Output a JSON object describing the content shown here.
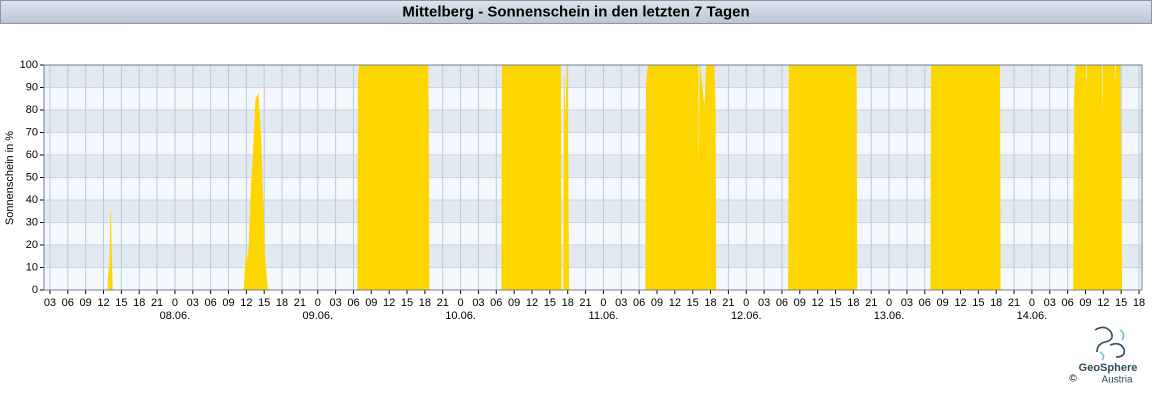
{
  "chart_data": {
    "type": "area",
    "title": "Mittelberg - Sonnenschein in den letzten 7 Tagen",
    "y_label": "Sonnenschein in %",
    "color": "#fdd600",
    "grid": true,
    "xlim": [
      -22,
      162.5
    ],
    "ylim": [
      0,
      100
    ],
    "yticks": [
      0,
      10,
      20,
      30,
      40,
      50,
      60,
      70,
      80,
      90,
      100
    ],
    "xticks": [
      {
        "value": -21,
        "label": "03"
      },
      {
        "value": -18,
        "label": "06"
      },
      {
        "value": -15,
        "label": "09"
      },
      {
        "value": -12,
        "label": "12"
      },
      {
        "value": -9,
        "label": "15"
      },
      {
        "value": -6,
        "label": "18"
      },
      {
        "value": -3,
        "label": "21"
      },
      0,
      {
        "value": 3,
        "label": "03"
      },
      {
        "value": 6,
        "label": "06"
      },
      {
        "value": 9,
        "label": "09"
      },
      12,
      15,
      18,
      21,
      {
        "value": 24,
        "label": "0"
      },
      {
        "value": 27,
        "label": "03"
      },
      {
        "value": 30,
        "label": "06"
      },
      {
        "value": 33,
        "label": "09"
      },
      {
        "value": 36,
        "label": "12"
      },
      {
        "value": 39,
        "label": "15"
      },
      {
        "value": 42,
        "label": "18"
      },
      {
        "value": 45,
        "label": "21"
      },
      {
        "value": 48,
        "label": "0"
      },
      {
        "value": 51,
        "label": "03"
      },
      {
        "value": 54,
        "label": "06"
      },
      {
        "value": 57,
        "label": "09"
      },
      {
        "value": 60,
        "label": "12"
      },
      {
        "value": 63,
        "label": "15"
      },
      {
        "value": 66,
        "label": "18"
      },
      {
        "value": 69,
        "label": "21"
      },
      {
        "value": 72,
        "label": "0"
      },
      {
        "value": 75,
        "label": "03"
      },
      {
        "value": 78,
        "label": "06"
      },
      {
        "value": 81,
        "label": "09"
      },
      {
        "value": 84,
        "label": "12"
      },
      {
        "value": 87,
        "label": "15"
      },
      {
        "value": 90,
        "label": "18"
      },
      {
        "value": 93,
        "label": "21"
      },
      {
        "value": 96,
        "label": "0"
      },
      {
        "value": 99,
        "label": "03"
      },
      {
        "value": 102,
        "label": "06"
      },
      {
        "value": 105,
        "label": "09"
      },
      {
        "value": 108,
        "label": "12"
      },
      {
        "value": 111,
        "label": "15"
      },
      {
        "value": 114,
        "label": "18"
      },
      {
        "value": 117,
        "label": "21"
      },
      {
        "value": 120,
        "label": "0"
      },
      {
        "value": 123,
        "label": "03"
      },
      {
        "value": 126,
        "label": "06"
      },
      {
        "value": 129,
        "label": "09"
      },
      {
        "value": 132,
        "label": "12"
      },
      {
        "value": 135,
        "label": "15"
      },
      {
        "value": 138,
        "label": "18"
      },
      {
        "value": 141,
        "label": "21"
      },
      {
        "value": 144,
        "label": "0"
      },
      {
        "value": 147,
        "label": "03"
      },
      {
        "value": 150,
        "label": "06"
      },
      {
        "value": 153,
        "label": "09"
      },
      {
        "value": 156,
        "label": "12"
      },
      {
        "value": 159,
        "label": "15"
      },
      {
        "value": 162,
        "label": "18"
      }
    ],
    "date_ticks": [
      {
        "value": 0,
        "label": "08.06."
      },
      {
        "value": 24,
        "label": "09.06."
      },
      {
        "value": 48,
        "label": "10.06."
      },
      {
        "value": 72,
        "label": "11.06."
      },
      {
        "value": 96,
        "label": "12.06."
      },
      {
        "value": 120,
        "label": "13.06."
      },
      {
        "value": 144,
        "label": "14.06."
      }
    ],
    "x": [
      -11.3,
      -11.1,
      -11.0,
      -10.8,
      -10.7,
      -10.5,
      -10.4,
      null,
      11.6,
      12.0,
      12.3,
      12.8,
      13.2,
      13.6,
      14.0,
      14.4,
      14.8,
      15.1,
      15.4,
      15.6,
      null,
      30.7,
      30.8,
      31.0,
      42.5,
      42.6,
      42.7,
      null,
      54.9,
      55.0,
      64.8,
      64.9,
      65.3,
      65.4,
      65.6,
      65.9,
      66.2,
      null,
      79.1,
      79.2,
      79.5,
      87.9,
      88.0,
      88.2,
      89.0,
      89.3,
      90.6,
      90.8,
      90.9,
      null,
      103.1,
      103.2,
      114.5,
      114.6,
      null,
      127.0,
      127.1,
      138.6,
      138.7,
      null,
      151.0,
      151.1,
      151.4,
      153.0,
      153.1,
      153.3,
      155.7,
      155.8,
      156.0,
      157.9,
      158.0,
      158.2,
      158.8,
      159.0,
      159.1
    ],
    "values": [
      0,
      10,
      0,
      35,
      20,
      0,
      0,
      null,
      0,
      18,
      10,
      45,
      63,
      85,
      87,
      70,
      40,
      15,
      5,
      0,
      null,
      0,
      95,
      100,
      100,
      75,
      0,
      null,
      0,
      100,
      100,
      0,
      0,
      95,
      70,
      100,
      0,
      null,
      0,
      90,
      100,
      100,
      25,
      100,
      80,
      100,
      100,
      80,
      0,
      null,
      0,
      100,
      100,
      0,
      null,
      0,
      100,
      100,
      0,
      null,
      0,
      85,
      100,
      100,
      83,
      100,
      100,
      68,
      100,
      100,
      88,
      100,
      100,
      50,
      0
    ]
  },
  "logo": {
    "name": "GeoSphere",
    "sub": "Austria",
    "copyright": "©"
  }
}
